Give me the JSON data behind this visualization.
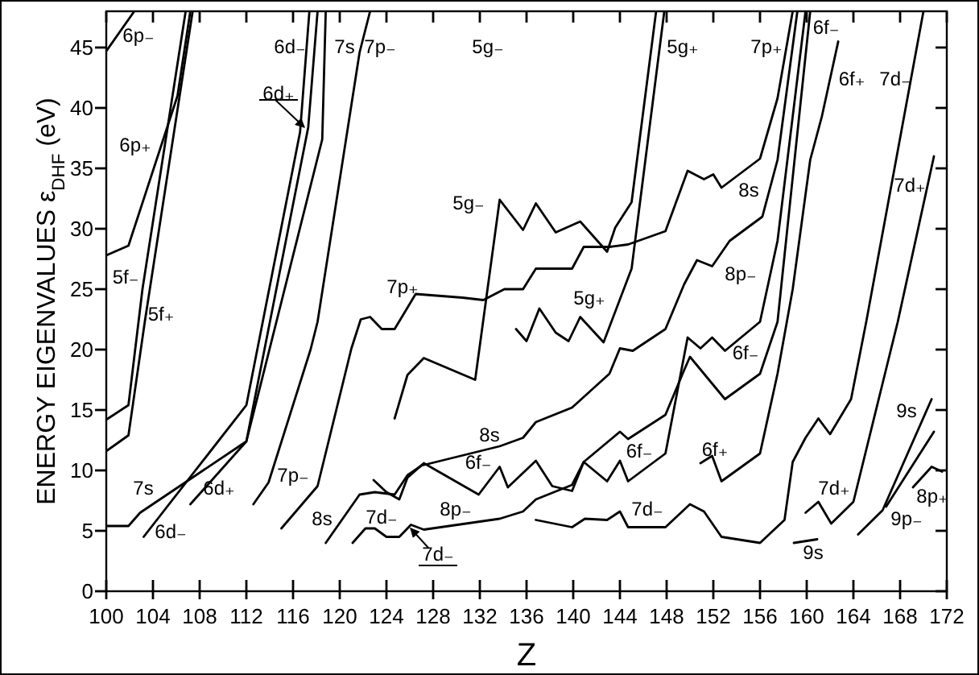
{
  "chart_data": {
    "type": "line",
    "xlabel": "Z",
    "ylabel": "ENERGY EIGENVALUES  ε$_{DHF}$ (eV)",
    "xlim": [
      100,
      172
    ],
    "xticks": [
      100,
      104,
      108,
      112,
      116,
      120,
      124,
      128,
      132,
      136,
      140,
      144,
      148,
      152,
      156,
      160,
      164,
      168,
      172
    ],
    "ylim": [
      0,
      48
    ],
    "yticks": [
      0,
      5,
      10,
      15,
      20,
      25,
      30,
      35,
      40,
      45
    ],
    "grid": false,
    "marker": "none",
    "line_style": "solid",
    "series": [
      {
        "color": "#000000",
        "x": [
          100,
          102.4
        ],
        "values": [
          44.7,
          48
        ]
      },
      {
        "color": "#000000",
        "x": [
          100,
          101.9,
          106.1,
          107.2
        ],
        "values": [
          27.8,
          28.6,
          41,
          48
        ]
      },
      {
        "color": "#000000",
        "x": [
          100,
          101.9,
          103.1,
          106.8
        ],
        "values": [
          14.2,
          15.4,
          25,
          48
        ]
      },
      {
        "color": "#000000",
        "x": [
          100,
          101.9,
          103.3,
          107.4
        ],
        "values": [
          11.6,
          12.9,
          22.3,
          48
        ]
      },
      {
        "color": "#000000",
        "x": [
          100,
          101.9,
          102.9,
          112,
          118.5,
          118.8
        ],
        "values": [
          5.4,
          5.4,
          6.5,
          12.4,
          37.4,
          48
        ]
      },
      {
        "color": "#000000",
        "x": [
          103.2,
          112,
          116.6,
          117.4
        ],
        "values": [
          4.5,
          15.4,
          38,
          48
        ]
      },
      {
        "color": "#000000",
        "x": [
          107.2,
          112,
          117.3,
          118.1
        ],
        "values": [
          7.2,
          12.4,
          38.4,
          48
        ]
      },
      {
        "color": "#000000",
        "x": [
          112.6,
          113.9,
          117.5,
          118.1,
          121.7,
          122.6
        ],
        "values": [
          7.2,
          9,
          20,
          22.3,
          44.6,
          48
        ]
      },
      {
        "color": "#000000",
        "x": [
          115,
          118.1,
          121,
          121.8,
          122.6,
          123.6,
          124.7,
          126.5,
          130.5,
          132.3,
          134.1,
          135.7,
          136.8,
          139.9,
          140.9,
          143.1,
          144.7,
          147.9,
          149.8,
          151.2,
          152,
          152.7,
          156,
          157.5,
          158.8
        ],
        "values": [
          5.2,
          8.7,
          20.1,
          22.5,
          22.7,
          21.7,
          21.7,
          24.6,
          24.3,
          24.1,
          25,
          25,
          26.7,
          26.7,
          28.5,
          28.5,
          28.7,
          29.8,
          34.8,
          34.1,
          34.5,
          33.4,
          35.8,
          40.8,
          48
        ]
      },
      {
        "color": "#000000",
        "x": [
          118.8,
          121.7,
          123,
          124.7,
          125.8,
          127,
          133.7,
          135.7,
          136.8,
          139.9,
          143.1,
          144,
          145.1,
          147.9,
          149.5,
          150.6,
          151.9,
          153.4,
          156.2,
          157.5,
          159.2
        ],
        "values": [
          4,
          8,
          8.2,
          8,
          9.6,
          10.4,
          12,
          12.7,
          14,
          15.2,
          18,
          20.1,
          19.9,
          21.7,
          25.4,
          27.4,
          26.9,
          29,
          31,
          35.7,
          48
        ]
      },
      {
        "color": "#000000",
        "x": [
          124.7,
          125.8,
          127.2,
          131.6,
          133.7,
          135.7,
          136.8,
          138.5,
          140.6,
          142.9,
          143.6,
          145,
          147.1
        ],
        "values": [
          14.3,
          17.9,
          19.3,
          17.5,
          32.4,
          29.9,
          32.1,
          29.7,
          30.6,
          28.1,
          30.1,
          32.2,
          48
        ]
      },
      {
        "color": "#000000",
        "x": [
          135.1,
          136,
          137.1,
          138.5,
          139.6,
          140.6,
          142.6,
          145,
          147.8
        ],
        "values": [
          21.7,
          20.7,
          23.4,
          21.4,
          20.7,
          22.7,
          20.6,
          26.7,
          48
        ]
      },
      {
        "color": "#000000",
        "x": [
          122.9,
          124,
          125.1,
          125.8,
          127.2,
          131.9,
          133.7,
          134.4,
          136.8,
          138.2,
          139.9,
          140.9,
          142.9,
          144,
          144.7,
          147.9,
          149.8,
          150.9,
          151.9,
          153,
          156,
          157.5,
          159.9
        ],
        "values": [
          9.2,
          8.2,
          7.6,
          9.4,
          10.6,
          8,
          10.3,
          8.6,
          10.8,
          8.7,
          8.3,
          10.7,
          9.1,
          10.8,
          9.1,
          11.4,
          21,
          20.1,
          21,
          19.9,
          22.3,
          29,
          48
        ]
      },
      {
        "color": "#000000",
        "x": [
          121.1,
          122.2,
          123,
          124,
          125.1,
          126.1,
          127.2,
          133.7,
          135.7,
          136.8,
          139.9,
          140.9,
          144,
          144.7,
          147.9,
          149.5,
          150,
          153,
          156,
          157.5,
          160.3
        ],
        "values": [
          4,
          5.2,
          5.2,
          4.5,
          4.5,
          5.5,
          5.1,
          6,
          6.6,
          7.6,
          8.8,
          10.7,
          13.2,
          12.6,
          14.6,
          18.3,
          19.4,
          15.9,
          18,
          22.3,
          48
        ]
      },
      {
        "color": "#000000",
        "x": [
          136.8,
          139.9,
          141,
          142.9,
          144,
          144.7,
          147.9,
          150,
          151.2,
          152.7,
          156,
          158.1,
          158.8,
          159.9,
          161,
          162,
          163.8,
          165.1,
          170
        ],
        "values": [
          5.9,
          5.3,
          6,
          5.9,
          6.6,
          5.3,
          5.3,
          7.2,
          6.6,
          4.5,
          4,
          5.9,
          10.7,
          12.7,
          14.3,
          13,
          15.9,
          22.3,
          48
        ]
      },
      {
        "color": "#000000",
        "x": [
          150.9,
          151.9,
          152.7,
          156,
          157.5,
          158.8,
          160.3,
          161.3,
          162.7
        ],
        "values": [
          10.6,
          11.2,
          9.1,
          11.4,
          18,
          25,
          35.7,
          39.3,
          45.5
        ]
      },
      {
        "color": "#000000",
        "x": [
          159.9,
          161,
          162.1,
          164,
          167.8,
          170.9
        ],
        "values": [
          6.5,
          7.4,
          5.6,
          7.4,
          22.3,
          36
        ]
      },
      {
        "color": "#000000",
        "x": [
          158.9,
          160.9
        ],
        "values": [
          4,
          4.3
        ]
      },
      {
        "color": "#000000",
        "x": [
          164.4,
          166.5,
          170.7
        ],
        "values": [
          4.7,
          6.7,
          15.9
        ]
      },
      {
        "color": "#000000",
        "x": [
          166.8,
          170.9
        ],
        "values": [
          7,
          13.2
        ]
      },
      {
        "color": "#000000",
        "x": [
          169.1,
          170.7,
          171.6
        ],
        "values": [
          8.6,
          10.3,
          9.9
        ]
      }
    ],
    "annotations": [
      "6p₋",
      "6p₊",
      "5f₋",
      "5f₊",
      "6d₋",
      "6d₊",
      "7s",
      "7p₋",
      "5g₋",
      "5g₊",
      "7p₊",
      "6f₋",
      "6f₊",
      "7d₋",
      "7d₊",
      "5g₋",
      "7p₊",
      "8s",
      "8p₋",
      "5g₊",
      "6f₋",
      "8s",
      "6f₋",
      "6f₋",
      "6f₊",
      "7d₋",
      "8p₋",
      "7d₋",
      "7d₋",
      "8s",
      "7p₋",
      "7s",
      "6d₊",
      "6d₋",
      "9s",
      "9s",
      "7d₊",
      "8p₊",
      "9p₋"
    ]
  }
}
